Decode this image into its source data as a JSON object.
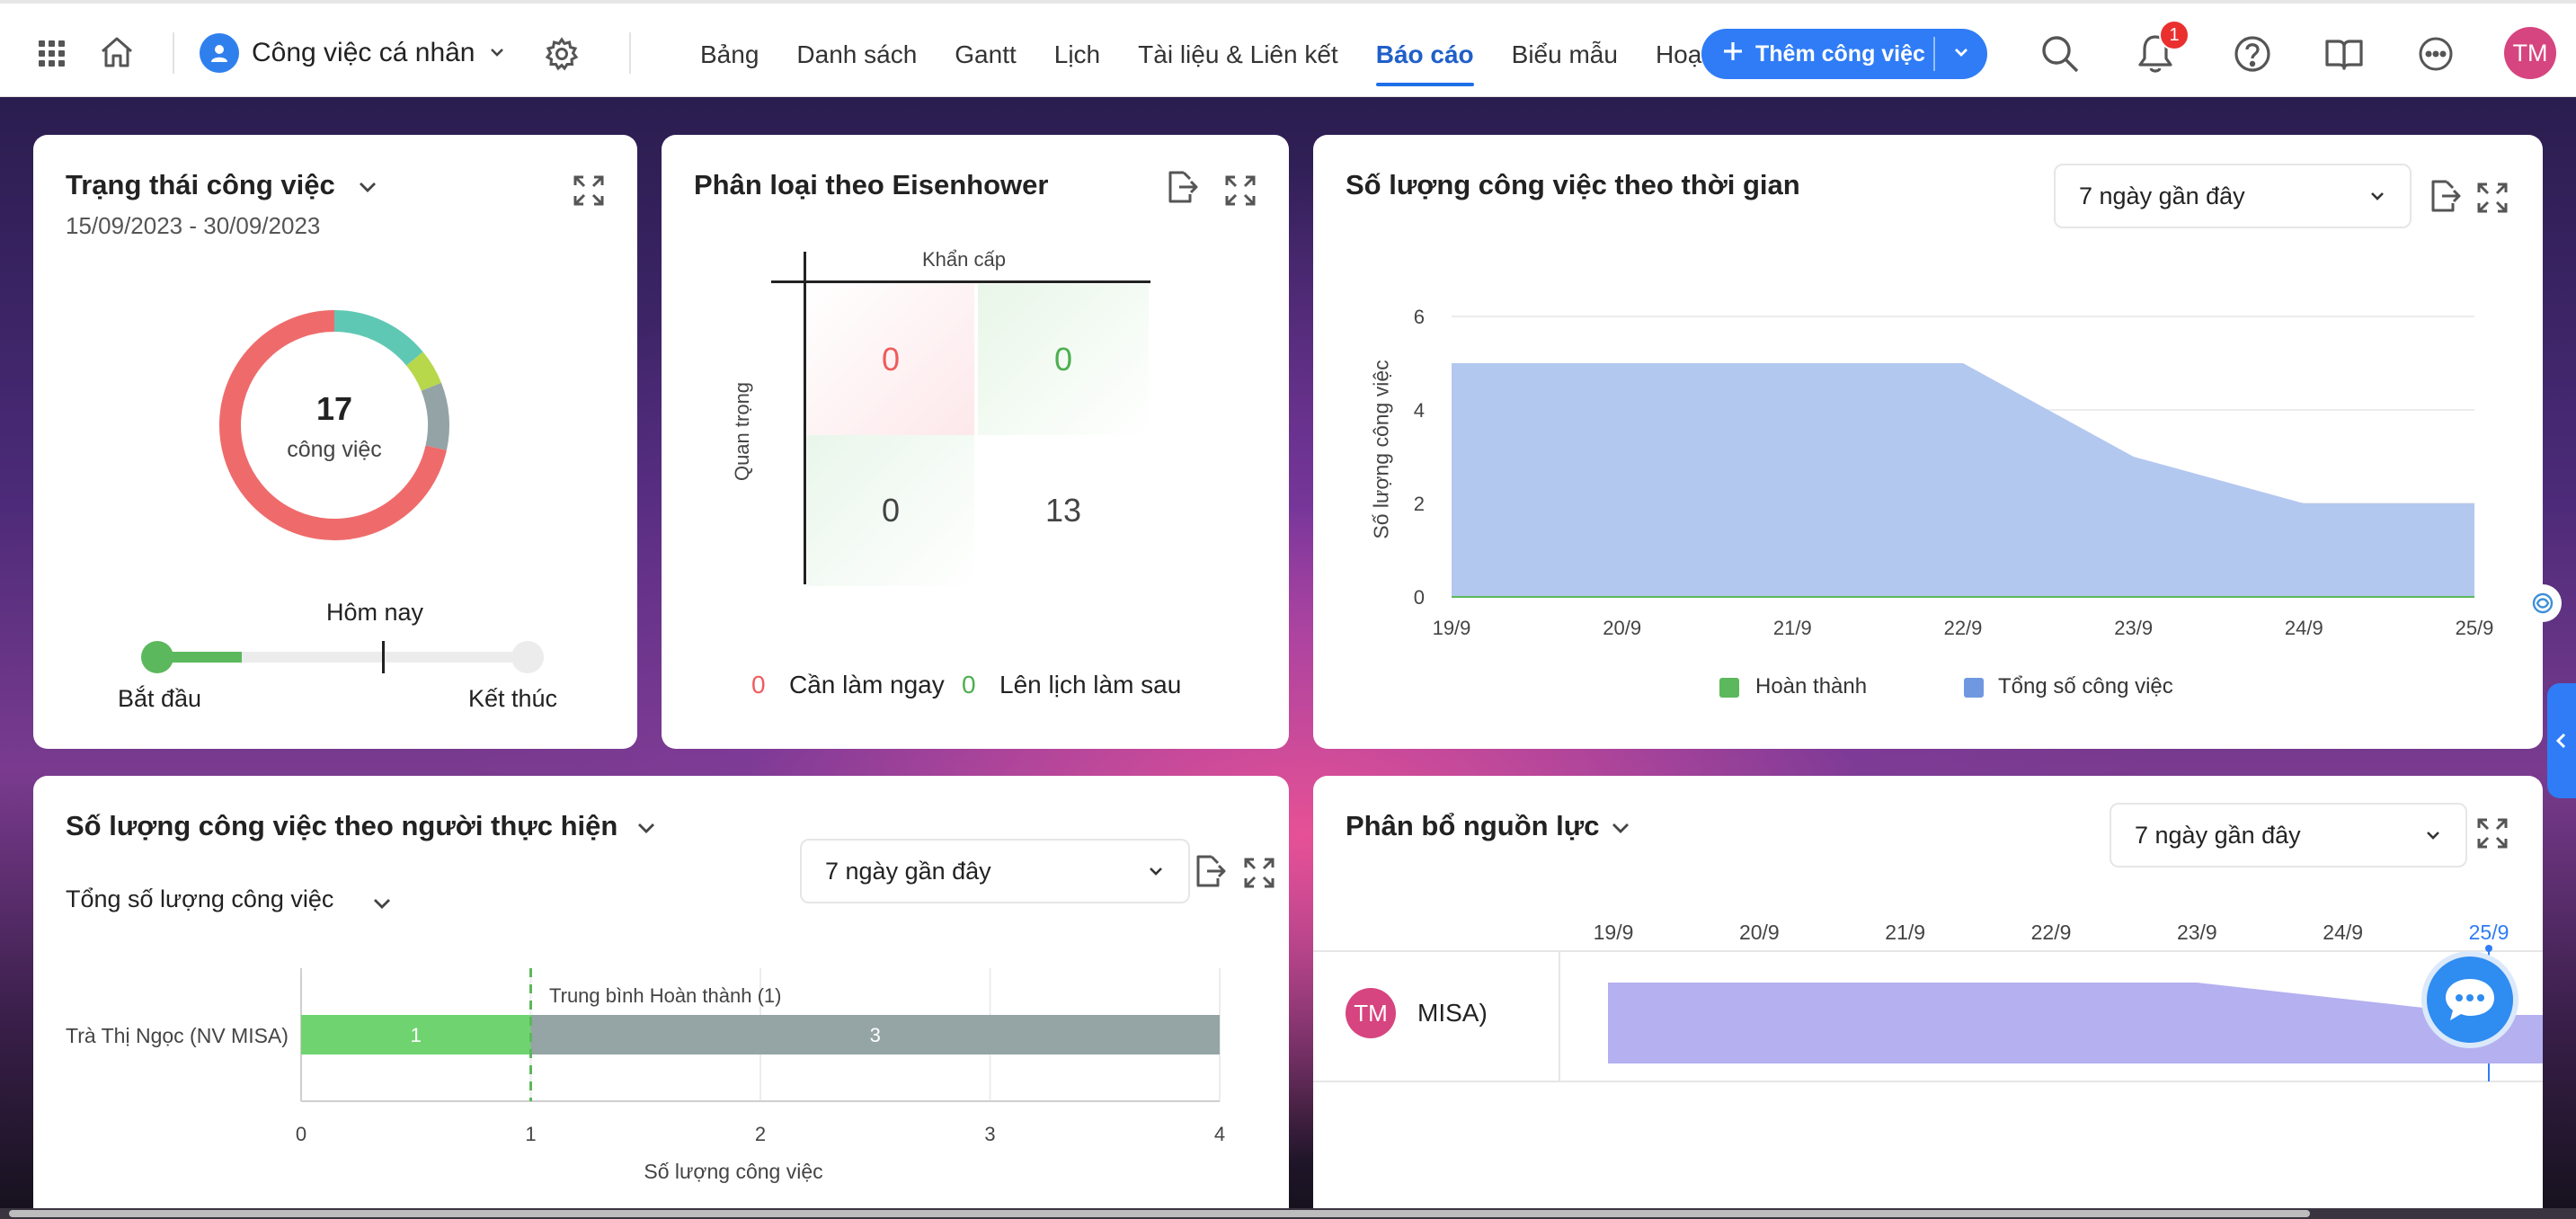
{
  "topbar": {
    "workspace": "Công việc cá nhân",
    "tabs": [
      "Bảng",
      "Danh sách",
      "Gantt",
      "Lịch",
      "Tài liệu & Liên kết",
      "Báo cáo",
      "Biểu mẫu",
      "Hoạt độ"
    ],
    "active_tab": "Báo cáo",
    "add_button": "Thêm công việc",
    "notification_count": "1",
    "user_initials": "TM",
    "icons": [
      "apps-grid-icon",
      "home-icon",
      "user-icon",
      "chevron-down-icon",
      "gear-icon",
      "plus-icon",
      "search-icon",
      "bell-icon",
      "help-icon",
      "book-icon",
      "more-icon"
    ]
  },
  "status_card": {
    "title": "Trạng thái công việc",
    "date_range": "15/09/2023 - 30/09/2023",
    "total": "17",
    "total_label": "công việc",
    "today_label": "Hôm nay",
    "start_label": "Bắt đầu",
    "end_label": "Kết thúc",
    "progress": 0.23,
    "today_position": 0.61,
    "colors": {
      "coral": "#ef6b6b",
      "teal": "#5fc8b4",
      "lime": "#b7d84b",
      "gray": "#94a3a6",
      "green": "#5cb85c"
    }
  },
  "eisenhower_card": {
    "title": "Phân loại theo Eisenhower",
    "axis_top": "Khẩn cấp",
    "axis_left": "Quan trọng",
    "cells": [
      "0",
      "0",
      "0",
      "13"
    ],
    "legend": [
      {
        "value": "0",
        "label": "Cần làm ngay",
        "color": "#ef5c5c"
      },
      {
        "value": "0",
        "label": "Lên lịch làm sau",
        "color": "#4caf50"
      }
    ]
  },
  "timeline_card": {
    "title": "Số lượng công việc theo thời gian",
    "range": "7 ngày gần đây",
    "chart_data": {
      "type": "area",
      "x": [
        "19/9",
        "20/9",
        "21/9",
        "22/9",
        "23/9",
        "24/9",
        "25/9"
      ],
      "series": [
        {
          "name": "Hoàn thành",
          "values": [
            0,
            0,
            0,
            0,
            0,
            0,
            0
          ],
          "color": "#5cb85c"
        },
        {
          "name": "Tổng số công việc",
          "values": [
            5,
            5,
            5,
            5,
            3,
            2,
            2
          ],
          "color": "#6f98e0"
        }
      ],
      "ylabel": "Số lượng công việc",
      "yticks": [
        "0",
        "2",
        "4",
        "6"
      ],
      "ylim": [
        0,
        6
      ],
      "legend": "bottom"
    }
  },
  "assignee_card": {
    "title": "Số lượng công việc theo người thực hiện",
    "metric": "Tổng số lượng công việc",
    "range": "7 ngày gần đây",
    "chart_data": {
      "type": "bar",
      "orientation": "horizontal",
      "categories": [
        "Trà Thị Ngọc (NV MISA)"
      ],
      "series": [
        {
          "values": [
            1
          ],
          "color": "#6fd46f"
        },
        {
          "values": [
            3
          ],
          "color": "#95a5a6"
        }
      ],
      "average_label": "Trung bình Hoàn thành (1)",
      "average": 1,
      "xticks": [
        "0",
        "1",
        "2",
        "3",
        "4"
      ],
      "xlim": [
        0,
        4
      ],
      "xlabel": "Số lượng công việc"
    }
  },
  "resource_card": {
    "title": "Phân bổ nguồn lực",
    "range": "7 ngày gần đây",
    "days": [
      "19/9",
      "20/9",
      "21/9",
      "22/9",
      "23/9",
      "24/9",
      "25/9"
    ],
    "today": "25/9",
    "row": {
      "initials": "TM",
      "name": "MISA)"
    },
    "chart_data": {
      "type": "area",
      "x": [
        "19/9",
        "20/9",
        "21/9",
        "22/9",
        "23/9",
        "24/9",
        "25/9"
      ],
      "values": [
        5,
        5,
        5,
        5,
        5,
        4,
        3
      ],
      "color": "#b5b0f0"
    }
  }
}
